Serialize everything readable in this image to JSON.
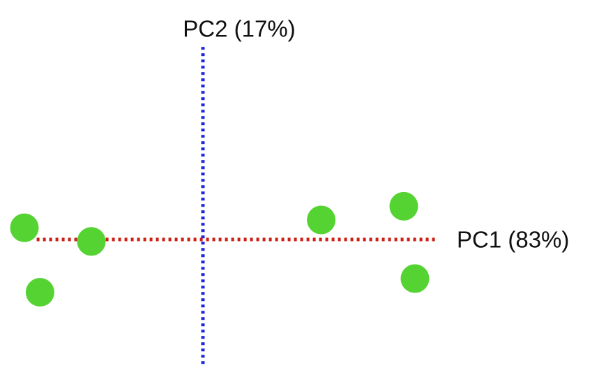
{
  "chart_data": {
    "type": "scatter",
    "xlabel": "PC1 (83%)",
    "ylabel": "PC2 (17%)",
    "xlim": [
      -8.5,
      10.5
    ],
    "ylim": [
      -6.5,
      9.5
    ],
    "axis_style": "dotted lines through origin",
    "colors": {
      "points": "#55d332",
      "x_axis": "#cc1e12",
      "y_axis": "#1c25e0",
      "text": "#111111"
    },
    "series": [
      {
        "points": [
          {
            "x": -8.0,
            "y": 0.6
          },
          {
            "x": -5.0,
            "y": -0.1
          },
          {
            "x": -7.3,
            "y": -2.7
          },
          {
            "x": 5.3,
            "y": 1.0
          },
          {
            "x": 9.0,
            "y": 1.7
          },
          {
            "x": 9.5,
            "y": -2.0
          }
        ]
      }
    ]
  }
}
